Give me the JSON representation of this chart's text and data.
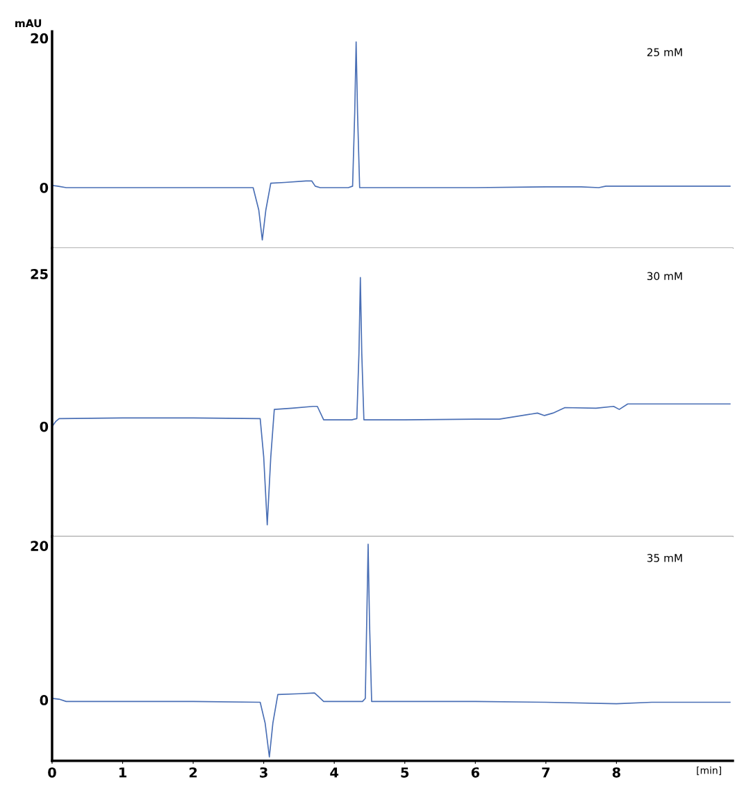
{
  "chart_data": [
    {
      "type": "line",
      "ylabel": "mAU",
      "annotations": [
        "25 mM"
      ],
      "tick_labels": "y",
      "xlim": [
        0,
        9.65
      ],
      "xticks": [
        0,
        1,
        2,
        3,
        4,
        5,
        6,
        7,
        8
      ],
      "ylim": [
        -8.1,
        20.9
      ],
      "yticks": [
        0,
        20
      ],
      "x": [
        0,
        0.08,
        0.2,
        1,
        2,
        2.85,
        2.93,
        2.98,
        3.03,
        3.1,
        3.3,
        3.6,
        3.68,
        3.73,
        3.8,
        4.2,
        4.26,
        4.29,
        4.31,
        4.33,
        4.36,
        4.45,
        5,
        6,
        7,
        7.5,
        7.75,
        7.85,
        8,
        9,
        9.61
      ],
      "series": [
        {
          "color": "#4a6fb5",
          "values": [
            0.3,
            0.2,
            0,
            0,
            0,
            0,
            -3,
            -7,
            -3,
            0.6,
            0.7,
            0.9,
            0.9,
            0.2,
            0,
            0,
            0.2,
            10,
            19.5,
            10,
            0,
            0,
            0,
            0,
            0.1,
            0.1,
            0,
            0.2,
            0.2,
            0.2,
            0.2
          ]
        }
      ]
    },
    {
      "type": "line",
      "annotations": [
        "30 mM"
      ],
      "tick_labels": "y",
      "xlim": [
        0,
        9.65
      ],
      "xticks": [
        0,
        1,
        2,
        3,
        4,
        5,
        6,
        7,
        8
      ],
      "ylim": [
        -18,
        29.2
      ],
      "yticks": [
        0,
        25
      ],
      "x": [
        0,
        0.05,
        0.1,
        1,
        2,
        2.95,
        3.0,
        3.05,
        3.1,
        3.15,
        3.4,
        3.7,
        3.76,
        3.85,
        4.25,
        4.32,
        4.35,
        4.37,
        4.39,
        4.42,
        4.5,
        5,
        6,
        6.34,
        6.88,
        6.98,
        7.1,
        7.27,
        7.71,
        7.96,
        8.04,
        8.16,
        9,
        9.61
      ],
      "series": [
        {
          "color": "#4a6fb5",
          "values": [
            0,
            0.8,
            1.3,
            1.4,
            1.4,
            1.3,
            -5,
            -16.1,
            -5,
            2.8,
            3.0,
            3.3,
            3.3,
            1.1,
            1.1,
            1.3,
            12,
            24.4,
            12,
            1.1,
            1.1,
            1.1,
            1.2,
            1.2,
            2.2,
            1.8,
            2.2,
            3.1,
            3.0,
            3.3,
            2.8,
            3.7,
            3.7,
            3.7
          ]
        }
      ]
    },
    {
      "type": "line",
      "xlabel": "[min]",
      "annotations": [
        "35 mM"
      ],
      "xlim": [
        0,
        9.65
      ],
      "xticks": [
        0,
        1,
        2,
        3,
        4,
        5,
        6,
        7,
        8
      ],
      "ylim": [
        -7.9,
        21.2
      ],
      "yticks": [
        0,
        20
      ],
      "x": [
        0,
        0.1,
        0.2,
        1,
        2,
        2.95,
        3.02,
        3.08,
        3.13,
        3.2,
        3.5,
        3.72,
        3.78,
        3.85,
        4.4,
        4.44,
        4.46,
        4.48,
        4.5,
        4.53,
        4.6,
        5,
        6,
        7,
        8,
        8.5,
        9,
        9.61
      ],
      "series": [
        {
          "color": "#4a6fb5",
          "values": [
            0.2,
            0.1,
            -0.2,
            -0.2,
            -0.2,
            -0.3,
            -3,
            -7.4,
            -3,
            0.7,
            0.8,
            0.9,
            0.4,
            -0.2,
            -0.2,
            0.2,
            10,
            20.2,
            10,
            -0.2,
            -0.2,
            -0.2,
            -0.2,
            -0.3,
            -0.5,
            -0.3,
            -0.3,
            -0.3
          ]
        }
      ]
    }
  ]
}
